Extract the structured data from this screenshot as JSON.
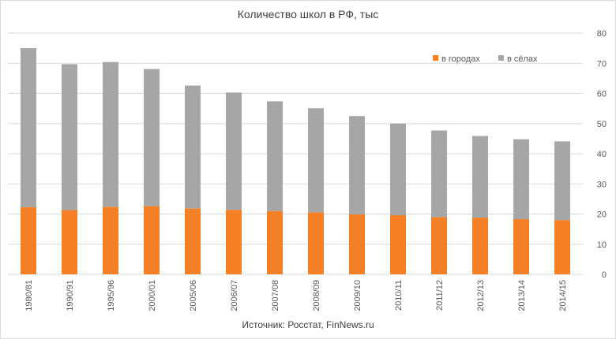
{
  "chart_data": {
    "type": "bar",
    "stacked": true,
    "title": "Количество школ в РФ, тыс",
    "source": "Источник: Росстат, FinNews.ru",
    "categories": [
      "1980/81",
      "1990/91",
      "1995/96",
      "2000/01",
      "2005/06",
      "2006/07",
      "2007/08",
      "2008/09",
      "2009/10",
      "2010/11",
      "2011/12",
      "2012/13",
      "2013/14",
      "2014/15"
    ],
    "series": [
      {
        "name": "в городах",
        "color": "#f58025",
        "values": [
          22.3,
          21.3,
          22.4,
          22.7,
          21.8,
          21.4,
          21.0,
          20.6,
          19.9,
          19.6,
          19.0,
          18.8,
          18.3,
          18.0
        ]
      },
      {
        "name": "в сёлах",
        "color": "#a6a6a6",
        "values": [
          52.7,
          48.4,
          48.0,
          45.4,
          40.8,
          38.9,
          36.4,
          34.5,
          32.6,
          30.4,
          28.7,
          27.1,
          26.5,
          26.1
        ]
      }
    ],
    "y_ticks": [
      "0",
      "10",
      "20",
      "30",
      "40",
      "50",
      "60",
      "70",
      "80"
    ],
    "ylim": [
      0,
      80
    ],
    "grid": true,
    "legend_position": "top-right",
    "y_axis_side": "right"
  }
}
